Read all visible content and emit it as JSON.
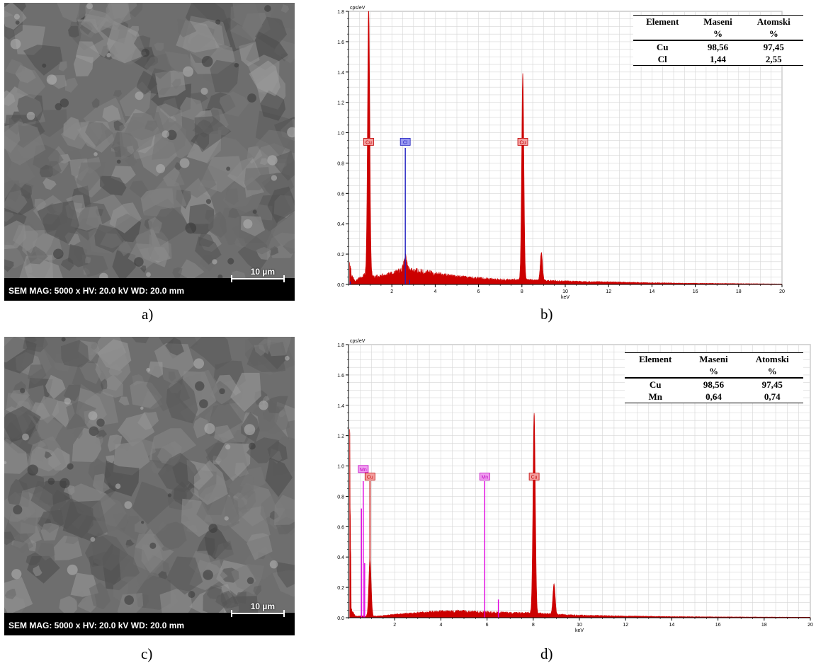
{
  "panels": [
    {
      "label": "a)",
      "sem": {
        "info": "SEM  MAG: 5000 x  HV: 20.0 kV  WD: 20.0 mm",
        "scale_bar": "10 µm"
      }
    },
    {
      "label": "b)",
      "table": {
        "headers": [
          [
            "Element",
            "Maseni",
            "Atomski"
          ],
          [
            "",
            "%",
            "%"
          ]
        ],
        "rows": [
          [
            "Cu",
            "98,56",
            "97,45"
          ],
          [
            "Cl",
            "1,44",
            "2,55"
          ]
        ]
      }
    },
    {
      "label": "c)",
      "sem": {
        "info": "SEM  MAG: 5000 x  HV: 20.0 kV  WD: 20.0 mm",
        "scale_bar": "10 µm"
      }
    },
    {
      "label": "d)",
      "table": {
        "headers": [
          [
            "Element",
            "Maseni",
            "Atomski"
          ],
          [
            "",
            "%",
            "%"
          ]
        ],
        "rows": [
          [
            "Cu",
            "98,56",
            "97,45"
          ],
          [
            "Mn",
            "0,64",
            "0,74"
          ]
        ]
      }
    }
  ],
  "chart_data": [
    {
      "type": "area",
      "ylabel": "cps/eV",
      "xlabel": "keV",
      "xlim": [
        0,
        20
      ],
      "ylim": [
        0,
        1.8
      ],
      "x_ticks": [
        2,
        4,
        6,
        8,
        10,
        12,
        14,
        16,
        18,
        20
      ],
      "y_ticks": [
        0.0,
        0.2,
        0.4,
        0.6,
        0.8,
        1.0,
        1.2,
        1.4,
        1.6,
        1.8
      ],
      "grid": true,
      "color": "#cc0000",
      "background": [
        [
          0.05,
          0.14
        ],
        [
          0.15,
          0.06
        ],
        [
          0.3,
          0.02
        ],
        [
          0.5,
          0.04
        ],
        [
          0.75,
          0.06
        ],
        [
          1.3,
          0.05
        ],
        [
          2.0,
          0.07
        ],
        [
          2.6,
          0.1
        ],
        [
          3.0,
          0.09
        ],
        [
          4.0,
          0.07
        ],
        [
          5.0,
          0.05
        ],
        [
          6.0,
          0.04
        ],
        [
          7.0,
          0.03
        ],
        [
          8.0,
          0.03
        ],
        [
          9.0,
          0.025
        ],
        [
          10.0,
          0.02
        ],
        [
          12.0,
          0.015
        ],
        [
          14.0,
          0.01
        ],
        [
          16.0,
          0.007
        ],
        [
          18.0,
          0.005
        ],
        [
          20.0,
          0.003
        ]
      ],
      "peaks": [
        {
          "x": 0.93,
          "height": 1.8,
          "width": 0.05
        },
        {
          "x": 2.62,
          "height": 0.08,
          "width": 0.06
        },
        {
          "x": 8.04,
          "height": 1.36,
          "width": 0.05
        },
        {
          "x": 8.9,
          "height": 0.19,
          "width": 0.05
        }
      ],
      "markers": [
        {
          "label": "Cu",
          "x": 0.93,
          "y": 0.94,
          "color": "#c00000",
          "fill": "#f4a0a0"
        },
        {
          "label": "Cl",
          "x": 2.62,
          "y": 0.94,
          "color": "#2020c0",
          "fill": "#9a9af0"
        },
        {
          "label": "Cu",
          "x": 8.04,
          "y": 0.94,
          "color": "#c00000",
          "fill": "#f4a0a0"
        }
      ],
      "lines": [
        {
          "x": 2.62,
          "y": 0.9,
          "color": "#2020c0"
        },
        {
          "x": 2.82,
          "y": 0.03,
          "color": "#2020c0"
        },
        {
          "x": 0.08,
          "y": 0.02,
          "color": "#2020c0"
        }
      ]
    },
    {
      "type": "area",
      "ylabel": "cps/eV",
      "xlabel": "keV",
      "xlim": [
        0,
        20
      ],
      "ylim": [
        0,
        1.8
      ],
      "x_ticks": [
        2,
        4,
        6,
        8,
        10,
        12,
        14,
        16,
        18,
        20
      ],
      "y_ticks": [
        0.0,
        0.2,
        0.4,
        0.6,
        0.8,
        1.0,
        1.2,
        1.4,
        1.6,
        1.8
      ],
      "grid": true,
      "color": "#cc0000",
      "background": [
        [
          0.05,
          1.2
        ],
        [
          0.12,
          0.05
        ],
        [
          0.3,
          0.01
        ],
        [
          0.8,
          0.01
        ],
        [
          1.3,
          0.01
        ],
        [
          2.0,
          0.02
        ],
        [
          3.0,
          0.03
        ],
        [
          4.0,
          0.04
        ],
        [
          5.0,
          0.04
        ],
        [
          6.0,
          0.035
        ],
        [
          7.0,
          0.03
        ],
        [
          8.0,
          0.03
        ],
        [
          9.0,
          0.02
        ],
        [
          10.0,
          0.015
        ],
        [
          12.0,
          0.01
        ],
        [
          14.0,
          0.007
        ],
        [
          16.0,
          0.005
        ],
        [
          18.0,
          0.004
        ],
        [
          20.0,
          0.003
        ]
      ],
      "peaks": [
        {
          "x": 0.93,
          "height": 0.38,
          "width": 0.05
        },
        {
          "x": 8.04,
          "height": 1.32,
          "width": 0.05
        },
        {
          "x": 8.9,
          "height": 0.2,
          "width": 0.05
        }
      ],
      "markers": [
        {
          "label": "Mn",
          "x": 0.64,
          "y": 0.98,
          "color": "#c000c0",
          "fill": "#f0a0f0"
        },
        {
          "label": "Cu",
          "x": 0.93,
          "y": 0.93,
          "color": "#c00000",
          "fill": "#f4a0a0"
        },
        {
          "label": "Mn",
          "x": 5.9,
          "y": 0.93,
          "color": "#c000c0",
          "fill": "#f0a0f0"
        },
        {
          "label": "Cu",
          "x": 8.04,
          "y": 0.93,
          "color": "#c00000",
          "fill": "#f4a0a0"
        }
      ],
      "lines": [
        {
          "x": 0.56,
          "y": 0.72,
          "color": "#e000e0"
        },
        {
          "x": 0.64,
          "y": 0.9,
          "color": "#e000e0"
        },
        {
          "x": 0.7,
          "y": 0.36,
          "color": "#e000e0"
        },
        {
          "x": 0.93,
          "y": 0.9,
          "color": "#c00000"
        },
        {
          "x": 5.9,
          "y": 0.9,
          "color": "#e000e0"
        },
        {
          "x": 6.49,
          "y": 0.12,
          "color": "#e000e0"
        }
      ]
    }
  ]
}
